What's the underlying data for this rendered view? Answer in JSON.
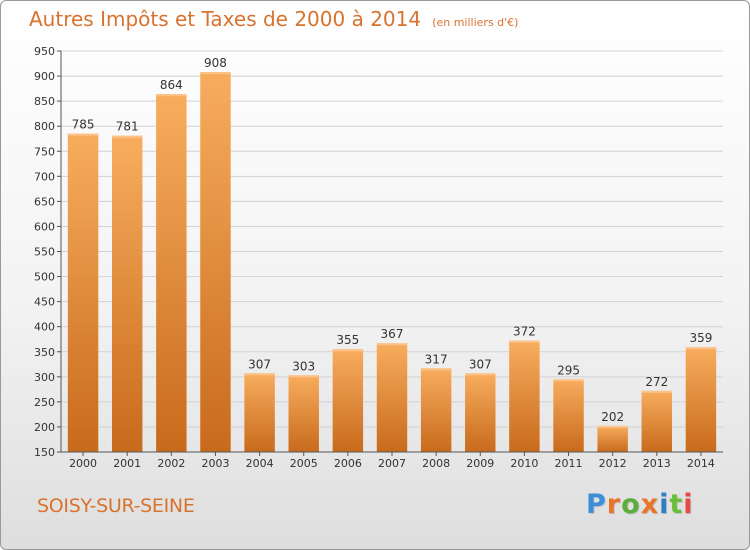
{
  "header": {
    "title": "Autres Impôts et Taxes de 2000 à 2014",
    "subtitle": "(en milliers d'€)"
  },
  "footer": {
    "city": "SOISY-SUR-SEINE",
    "brand": "Proxiti"
  },
  "colors": {
    "accent": "#d8732f",
    "bar_light": "#f8ad5e",
    "bar_dark": "#c86a1c",
    "grid": "#d2d2d2",
    "brand_letters": [
      "#3a8fd9",
      "#e8742a",
      "#5cae3c",
      "#e8742a",
      "#2f7fc8",
      "#6abf3a",
      "#e84a4a"
    ]
  },
  "chart_data": {
    "type": "bar",
    "title": "Autres Impôts et Taxes de 2000 à 2014",
    "categories": [
      "2000",
      "2001",
      "2002",
      "2003",
      "2004",
      "2005",
      "2006",
      "2007",
      "2008",
      "2009",
      "2010",
      "2011",
      "2012",
      "2013",
      "2014"
    ],
    "values": [
      785,
      781,
      864,
      908,
      307,
      303,
      355,
      367,
      317,
      307,
      372,
      295,
      202,
      272,
      359
    ],
    "ylim": [
      150,
      950
    ],
    "yticks": [
      150,
      200,
      250,
      300,
      350,
      400,
      450,
      500,
      550,
      600,
      650,
      700,
      750,
      800,
      850,
      900,
      950
    ],
    "grid": true,
    "legend": "none"
  }
}
